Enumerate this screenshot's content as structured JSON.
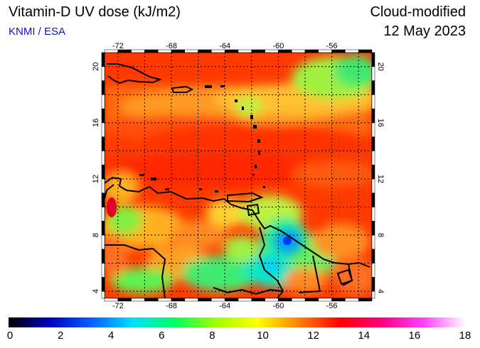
{
  "header": {
    "title": "Vitamin-D UV dose (kJ/m2)",
    "credit": "KNMI / ESA",
    "mode": "Cloud-modified",
    "date": "12 May 2023"
  },
  "map": {
    "lon_range": [
      -73,
      -53
    ],
    "lat_range": [
      3.5,
      21
    ],
    "lon_ticks": [
      -72,
      -68,
      -64,
      -60,
      -56
    ],
    "lat_ticks": [
      4,
      8,
      12,
      16,
      20
    ],
    "grid_lon_step": 2,
    "grid_lat_step": 2,
    "grid": "dotted"
  },
  "colorbar": {
    "min": 0,
    "max": 18,
    "labels": [
      "0",
      "2",
      "4",
      "6",
      "8",
      "10",
      "12",
      "14",
      "16",
      "18"
    ],
    "stops": [
      "#000000",
      "#0000c0",
      "#0060ff",
      "#00e0ff",
      "#00ff60",
      "#a0ff00",
      "#ffff00",
      "#ff8000",
      "#ff0000",
      "#ff0080",
      "#ff40ff",
      "#ffffff"
    ]
  }
}
